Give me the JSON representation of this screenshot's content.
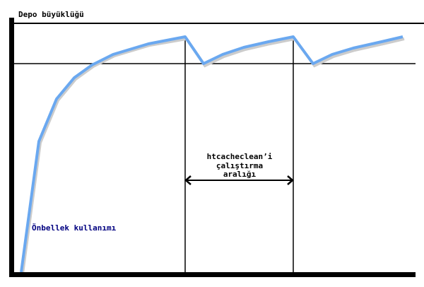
{
  "y_label": "Depo büyüklüğü",
  "curve_label": "Önbellek kullanımı",
  "interval_label": [
    "htcacheclean’i",
    "çalıştırma",
    "aralığı"
  ],
  "colors": {
    "curve": "#6aa8f0",
    "axes": "#000000",
    "curve_label": "#000080"
  }
}
